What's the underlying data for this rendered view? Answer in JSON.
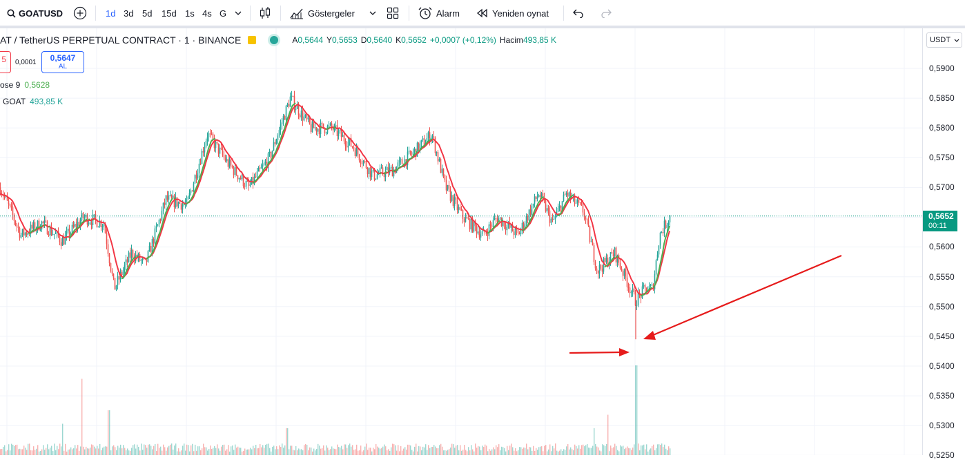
{
  "toolbar": {
    "symbol": "GOATUSD",
    "intervals": [
      {
        "label": "1d",
        "active": true
      },
      {
        "label": "3d",
        "active": false
      },
      {
        "label": "5d",
        "active": false
      },
      {
        "label": "15d",
        "active": false
      },
      {
        "label": "1s",
        "active": false
      },
      {
        "label": "4s",
        "active": false
      },
      {
        "label": "G",
        "active": false
      }
    ],
    "indicators_label": "Göstergeler",
    "alarm_label": "Alarm",
    "replay_label": "Yeniden oynat"
  },
  "legend": {
    "title": "AT / TetherUS PERPETUAL CONTRACT · 1 · BINANCE",
    "open_label": "A",
    "open": "0,5644",
    "high_label": "Y",
    "high": "0,5653",
    "low_label": "D",
    "low": "0,5640",
    "close_label": "K",
    "close": "0,5652",
    "change": "+0,0007 (+0,12%)",
    "volume_label": "Hacim",
    "volume": "493,85 K"
  },
  "trade": {
    "sell_fragment": "5",
    "spread": "0,0001",
    "buy_price": "0,5647",
    "buy_label": "AL"
  },
  "indicators": [
    {
      "label": "ose 9",
      "value": "0,5628",
      "color": "#4caf50"
    },
    {
      "label": "GOAT",
      "value": "493,85 K",
      "color": "#26a69a"
    }
  ],
  "price_axis": {
    "currency": "USDT",
    "ticks": [
      "0,5900",
      "0,5850",
      "0,5800",
      "0,5750",
      "0,5700",
      "0,5600",
      "0,5550",
      "0,5500",
      "0,5450",
      "0,5400",
      "0,5350",
      "0,5300",
      "0,5250"
    ],
    "last_price": "0,5652",
    "countdown": "00:11"
  },
  "colors": {
    "up": "#26a69a",
    "down": "#ef5350",
    "sma": "#f23645",
    "ema": "#4caf50",
    "accent": "#2962ff",
    "annotation": "#e61b1b"
  },
  "chart_data": {
    "type": "candlestick",
    "price_range": [
      0.525,
      0.59
    ],
    "key_points": [
      {
        "t": 0,
        "price": 0.57
      },
      {
        "t": 30,
        "price": 0.562
      },
      {
        "t": 60,
        "price": 0.564
      },
      {
        "t": 90,
        "price": 0.561
      },
      {
        "t": 120,
        "price": 0.565
      },
      {
        "t": 150,
        "price": 0.564
      },
      {
        "t": 165,
        "price": 0.553
      },
      {
        "t": 190,
        "price": 0.559
      },
      {
        "t": 210,
        "price": 0.557
      },
      {
        "t": 240,
        "price": 0.568
      },
      {
        "t": 270,
        "price": 0.567
      },
      {
        "t": 300,
        "price": 0.579
      },
      {
        "t": 330,
        "price": 0.574
      },
      {
        "t": 360,
        "price": 0.57
      },
      {
        "t": 390,
        "price": 0.575
      },
      {
        "t": 420,
        "price": 0.585
      },
      {
        "t": 450,
        "price": 0.58
      },
      {
        "t": 480,
        "price": 0.58
      },
      {
        "t": 510,
        "price": 0.577
      },
      {
        "t": 540,
        "price": 0.572
      },
      {
        "t": 570,
        "price": 0.573
      },
      {
        "t": 600,
        "price": 0.576
      },
      {
        "t": 625,
        "price": 0.579
      },
      {
        "t": 645,
        "price": 0.57
      },
      {
        "t": 670,
        "price": 0.565
      },
      {
        "t": 700,
        "price": 0.562
      },
      {
        "t": 720,
        "price": 0.565
      },
      {
        "t": 750,
        "price": 0.562
      },
      {
        "t": 780,
        "price": 0.569
      },
      {
        "t": 800,
        "price": 0.564
      },
      {
        "t": 820,
        "price": 0.569
      },
      {
        "t": 845,
        "price": 0.566
      },
      {
        "t": 865,
        "price": 0.556
      },
      {
        "t": 890,
        "price": 0.559
      },
      {
        "t": 905,
        "price": 0.555
      },
      {
        "t": 920,
        "price": 0.551
      },
      {
        "t": 935,
        "price": 0.553
      },
      {
        "t": 945,
        "price": 0.553
      },
      {
        "t": 955,
        "price": 0.562
      },
      {
        "t": 970,
        "price": 0.5652
      }
    ],
    "last_price": 0.5652,
    "wick_low": 0.5445,
    "volume_spikes": [
      {
        "t": 118,
        "v": 0.85
      },
      {
        "t": 157,
        "v": 0.5
      },
      {
        "t": 90,
        "v": 0.35
      },
      {
        "t": 415,
        "v": 0.3
      },
      {
        "t": 860,
        "v": 0.3
      },
      {
        "t": 880,
        "v": 0.45
      },
      {
        "t": 921,
        "v": 1.0
      }
    ]
  }
}
